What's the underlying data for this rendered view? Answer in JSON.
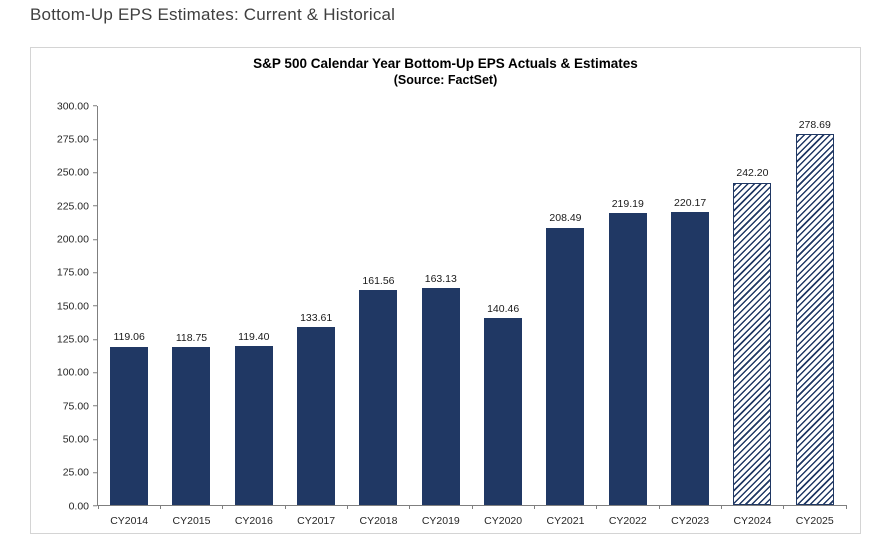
{
  "page_title": "Bottom-Up EPS Estimates: Current & Historical",
  "chart_data": {
    "type": "bar",
    "title": "S&P 500 Calendar Year Bottom-Up EPS Actuals & Estimates",
    "subtitle": "(Source: FactSet)",
    "categories": [
      "CY2014",
      "CY2015",
      "CY2016",
      "CY2017",
      "CY2018",
      "CY2019",
      "CY2020",
      "CY2021",
      "CY2022",
      "CY2023",
      "CY2024",
      "CY2025"
    ],
    "values": [
      119.06,
      118.75,
      119.4,
      133.61,
      161.56,
      163.13,
      140.46,
      208.49,
      219.19,
      220.17,
      242.2,
      278.69
    ],
    "is_estimate": [
      false,
      false,
      false,
      false,
      false,
      false,
      false,
      false,
      false,
      false,
      true,
      true
    ],
    "xlabel": "",
    "ylabel": "",
    "ylim": [
      0,
      300
    ],
    "ytick_step": 25,
    "grid": false,
    "legend_position": "none",
    "bar_color": "#203864",
    "estimate_bar_style": "diagonal-hatch",
    "value_labels_shown": true
  }
}
